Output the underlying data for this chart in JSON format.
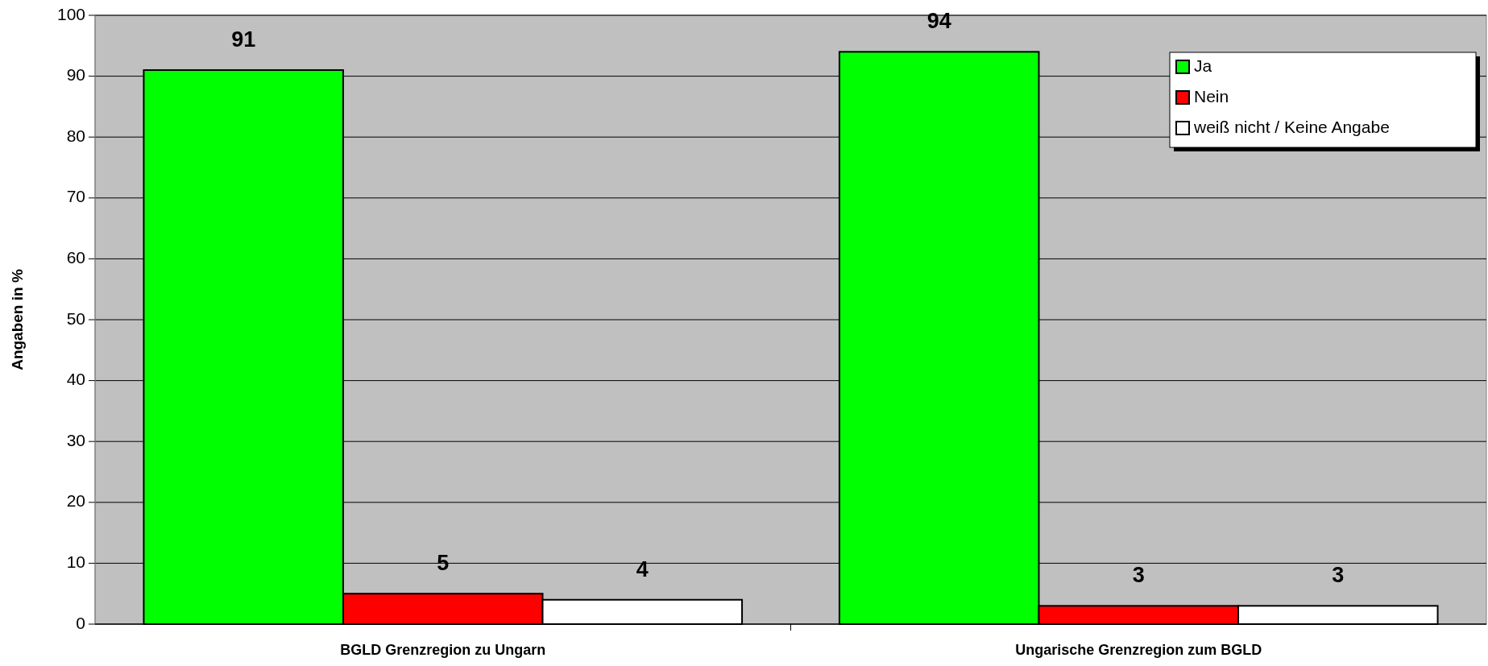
{
  "chart_data": {
    "type": "bar",
    "ylabel": "Angaben in %",
    "categories": [
      "BGLD Grenzregion zu Ungarn",
      "Ungarische Grenzregion zum BGLD"
    ],
    "series": [
      {
        "name": "Ja",
        "color": "#00ff00",
        "values": [
          91,
          94
        ]
      },
      {
        "name": "Nein",
        "color": "#ff0000",
        "values": [
          5,
          3
        ]
      },
      {
        "name": "weiß nicht / Keine Angabe",
        "color": "#ffffff",
        "values": [
          4,
          3
        ]
      }
    ],
    "ylim": [
      0,
      100
    ],
    "yticks": [
      0,
      10,
      20,
      30,
      40,
      50,
      60,
      70,
      80,
      90,
      100
    ],
    "grid": "y",
    "legend": "top right",
    "data_labels": true
  }
}
